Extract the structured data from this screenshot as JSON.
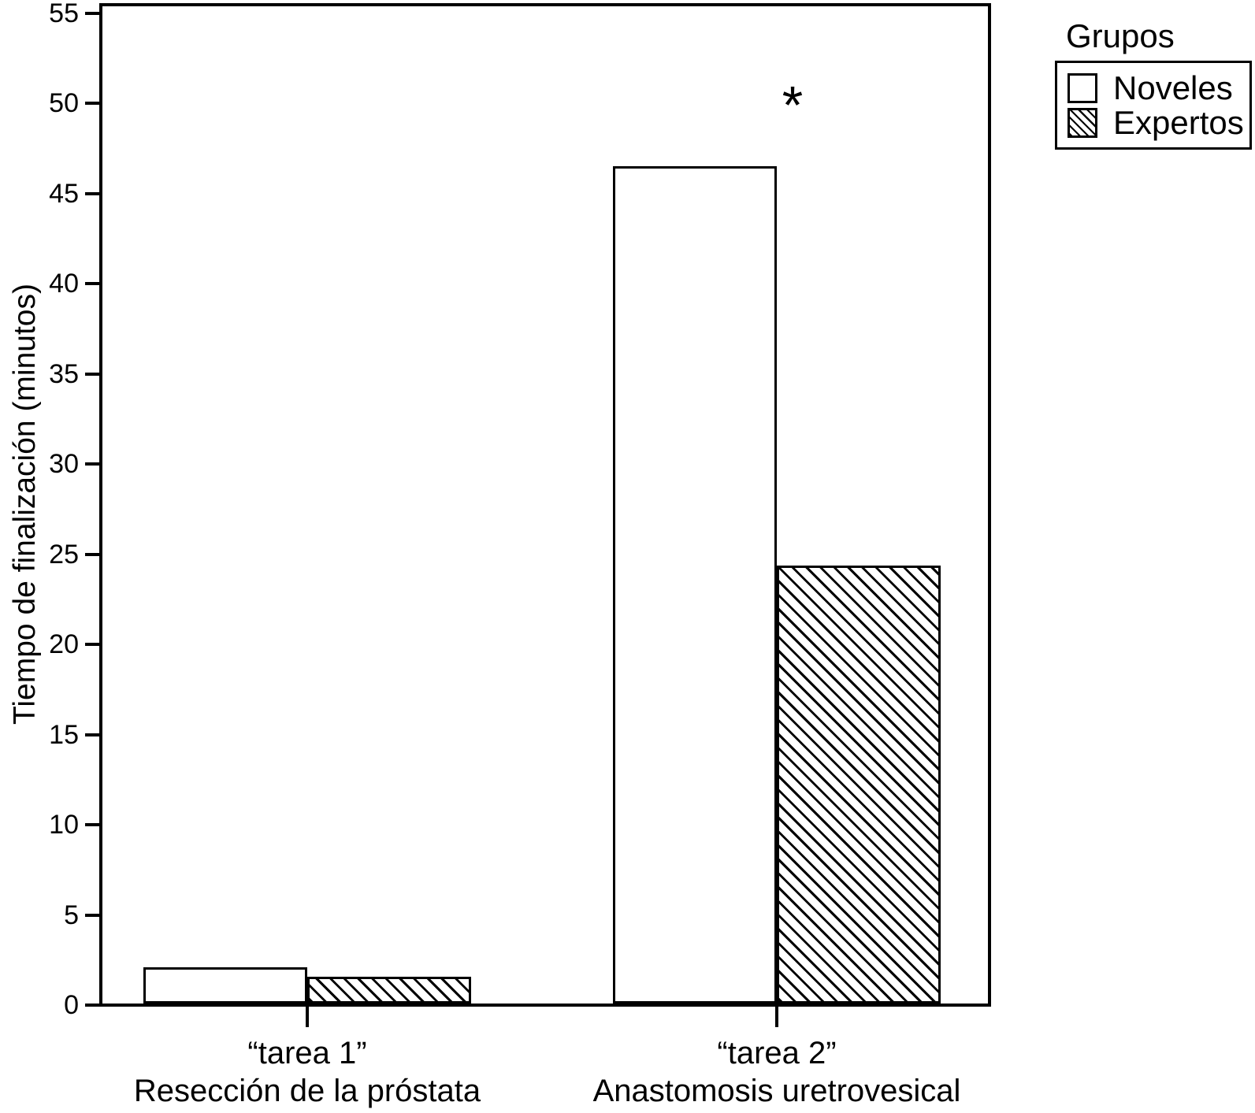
{
  "figure": {
    "background_color": "#ffffff",
    "ink_color": "#000000"
  },
  "chart_data": {
    "type": "bar",
    "title": "",
    "xlabel": "",
    "ylabel": "Tiempo de finalización (minutos)",
    "ylim": [
      0,
      55.6
    ],
    "yticks": [
      0,
      5,
      10,
      15,
      20,
      25,
      30,
      35,
      40,
      45,
      50,
      55
    ],
    "grid": false,
    "categories": [
      {
        "line1": "“tarea 1”",
        "line2": "Resección de la próstata"
      },
      {
        "line1": "“tarea 2”",
        "line2": "Anastomosis uretrovesical"
      }
    ],
    "series": [
      {
        "name": "Noveles",
        "pattern": "plain",
        "values": [
          2.0,
          46.4
        ]
      },
      {
        "name": "Expertos",
        "pattern": "hatch",
        "values": [
          1.5,
          24.3
        ]
      }
    ],
    "annotations": [
      {
        "text": "*",
        "category_index": 1,
        "series": "Noveles",
        "value": 50
      }
    ],
    "legend": {
      "title": "Grupos",
      "position": "top-right",
      "entries": [
        "Noveles",
        "Expertos"
      ]
    }
  }
}
